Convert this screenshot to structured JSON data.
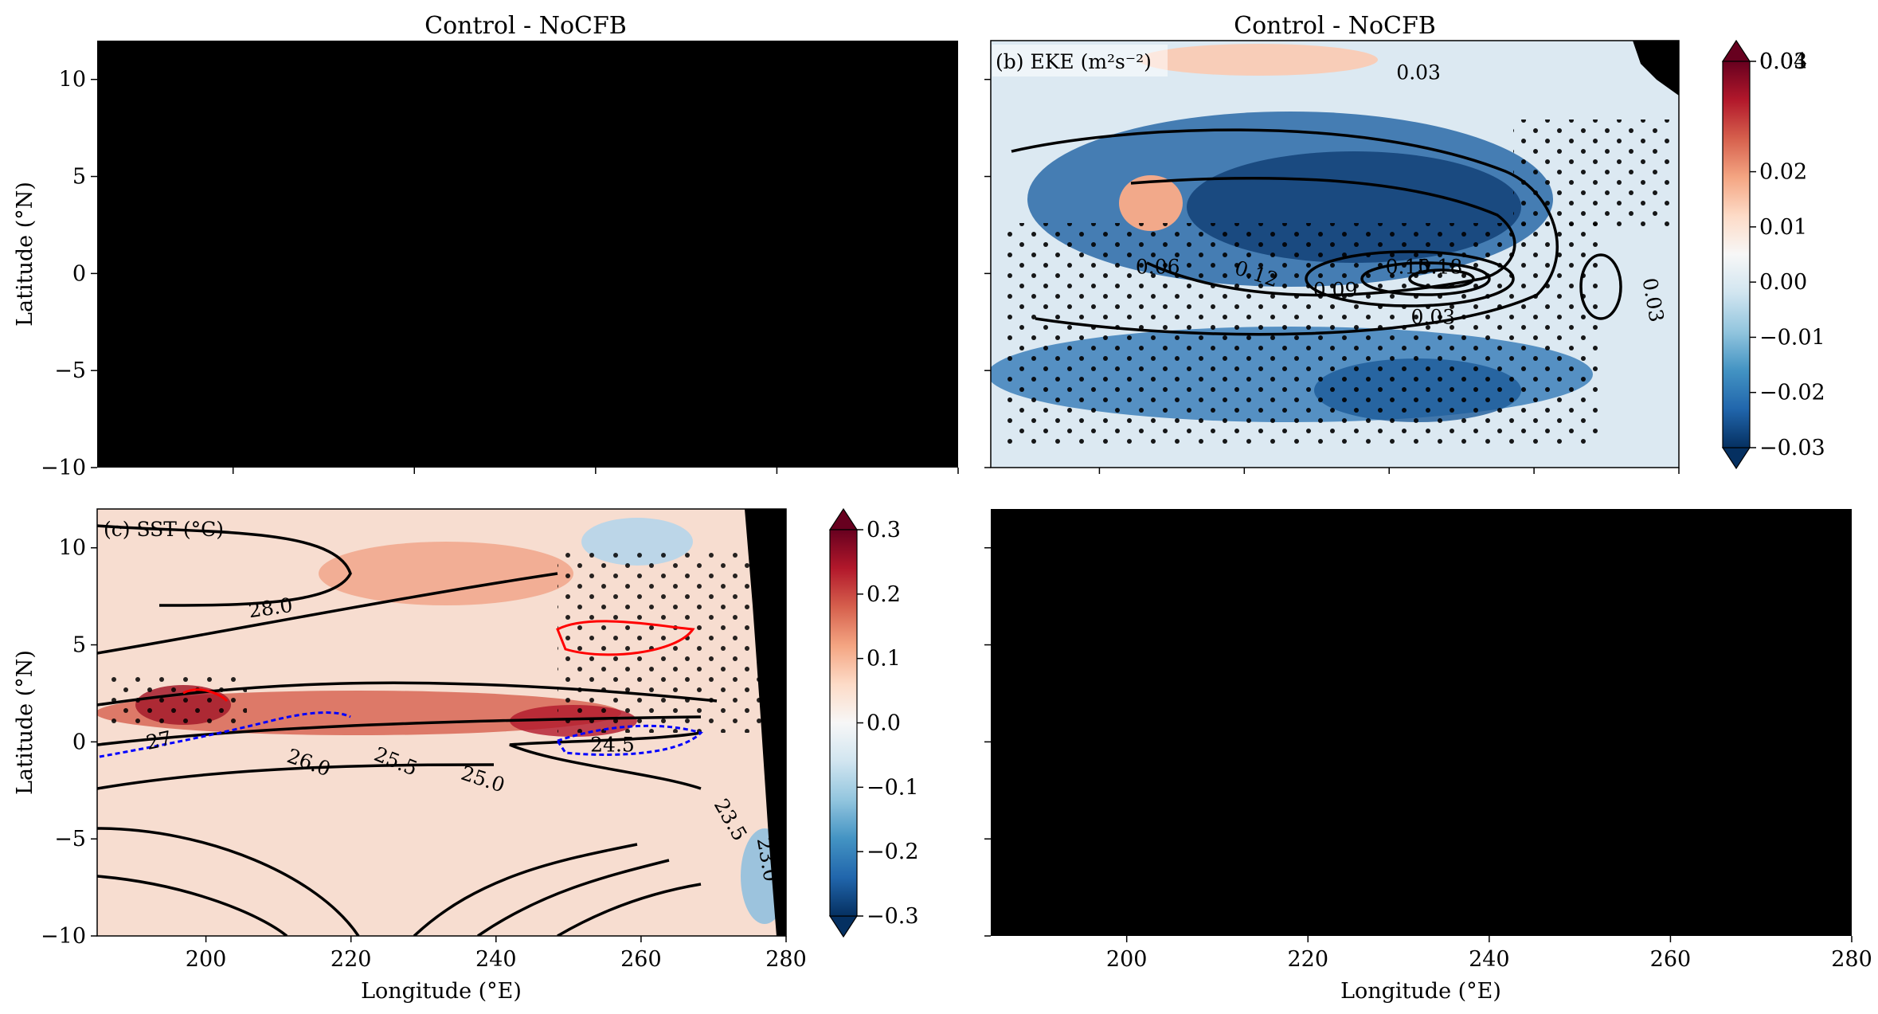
{
  "figure": {
    "panels": [
      {
        "id": "a",
        "title": "Control - NoCFB",
        "label": "",
        "filled": true,
        "show_y_ticks": true,
        "show_x_ticks": false,
        "ylabel": "Latitude (°N)",
        "xlabel": ""
      },
      {
        "id": "b",
        "title": "Control - NoCFB",
        "label": "(b) EKE (m²s⁻²)",
        "filled": false,
        "show_y_ticks": false,
        "show_x_ticks": false,
        "ylabel": "",
        "xlabel": ""
      },
      {
        "id": "c",
        "title": "",
        "label": "(c) SST (°C)",
        "filled": false,
        "show_y_ticks": true,
        "show_x_ticks": true,
        "ylabel": "Latitude (°N)",
        "xlabel": "Longitude (°E)"
      },
      {
        "id": "d",
        "title": "",
        "label": "",
        "filled": true,
        "show_y_ticks": false,
        "show_x_ticks": true,
        "ylabel": "",
        "xlabel": "Longitude (°E)"
      }
    ],
    "colors": {
      "background": "#ffffff",
      "masked_panel": "#000000",
      "land": "#000000",
      "contour": "#000000",
      "stipple": "#000000",
      "contour_positive": "#ff0000",
      "contour_negative": "#0000ff",
      "colormap": [
        "#053061",
        "#2166ac",
        "#4393c3",
        "#92c5de",
        "#d1e5f0",
        "#f7f7f7",
        "#fddbc7",
        "#f4a582",
        "#d6604d",
        "#b2182b",
        "#67001f"
      ]
    }
  },
  "chart_data": [
    {
      "type": "heatmap",
      "panel": "a",
      "title": "Control - NoCFB",
      "ylabel": "Latitude (°N)",
      "xlim": [
        185,
        280
      ],
      "ylim": [
        -10,
        12
      ],
      "x_ticks": [
        200,
        220,
        240,
        260,
        280
      ],
      "y_ticks": [
        -10,
        -5,
        0,
        5,
        10
      ],
      "y_tick_labels": [
        "−10",
        "−5",
        "0",
        "5",
        "10"
      ],
      "field": "masked (black)"
    },
    {
      "type": "heatmap",
      "panel": "b",
      "title": "Control - NoCFB",
      "variable_label": "(b) EKE (m²s⁻²)",
      "xlim": [
        185,
        280
      ],
      "ylim": [
        -10,
        12
      ],
      "x_ticks": [
        200,
        220,
        240,
        260,
        280
      ],
      "y_ticks": [
        -10,
        -5,
        0,
        5,
        10
      ],
      "colorbar": {
        "range": [
          -0.03,
          0.04
        ],
        "extend": "both",
        "tick_values": [
          -0.03,
          -0.02,
          -0.01,
          0.0,
          0.01,
          0.02,
          0.04
        ],
        "tick_labels": [
          "−0.03",
          "−0.02",
          "−0.01",
          "0.00",
          "0.01",
          "0.02",
          "0.04"
        ],
        "overlap_label": "0.03"
      },
      "contour_labels": [
        "0.03",
        "0.06",
        "0.12",
        "0.09",
        "0.15",
        "0.18",
        "0.03",
        "0.03"
      ],
      "stippling": true
    },
    {
      "type": "heatmap",
      "panel": "c",
      "variable_label": "(c) SST (°C)",
      "xlabel": "Longitude (°E)",
      "ylabel": "Latitude (°N)",
      "xlim": [
        185,
        280
      ],
      "ylim": [
        -10,
        12
      ],
      "x_ticks": [
        200,
        220,
        240,
        260,
        280
      ],
      "x_tick_labels": [
        "200",
        "220",
        "240",
        "260",
        "280"
      ],
      "y_ticks": [
        -10,
        -5,
        0,
        5,
        10
      ],
      "y_tick_labels": [
        "−10",
        "−5",
        "0",
        "5",
        "10"
      ],
      "colorbar": {
        "range": [
          -0.3,
          0.3
        ],
        "extend": "both",
        "tick_values": [
          -0.3,
          -0.2,
          -0.1,
          0.0,
          0.1,
          0.2,
          0.3
        ],
        "tick_labels": [
          "−0.3",
          "−0.2",
          "−0.1",
          "0.0",
          "0.1",
          "0.2",
          "0.3"
        ]
      },
      "contour_labels": [
        "28.0",
        "27",
        "26.0",
        "25.5",
        "25.0",
        "24.5",
        "23.5",
        "27.0",
        "23.0"
      ],
      "stippling": true
    },
    {
      "type": "heatmap",
      "panel": "d",
      "xlabel": "Longitude (°E)",
      "xlim": [
        185,
        280
      ],
      "ylim": [
        -10,
        12
      ],
      "x_ticks": [
        200,
        220,
        240,
        260,
        280
      ],
      "x_tick_labels": [
        "200",
        "220",
        "240",
        "260",
        "280"
      ],
      "y_ticks": [
        -10,
        -5,
        0,
        5,
        10
      ],
      "field": "masked (black)"
    }
  ]
}
